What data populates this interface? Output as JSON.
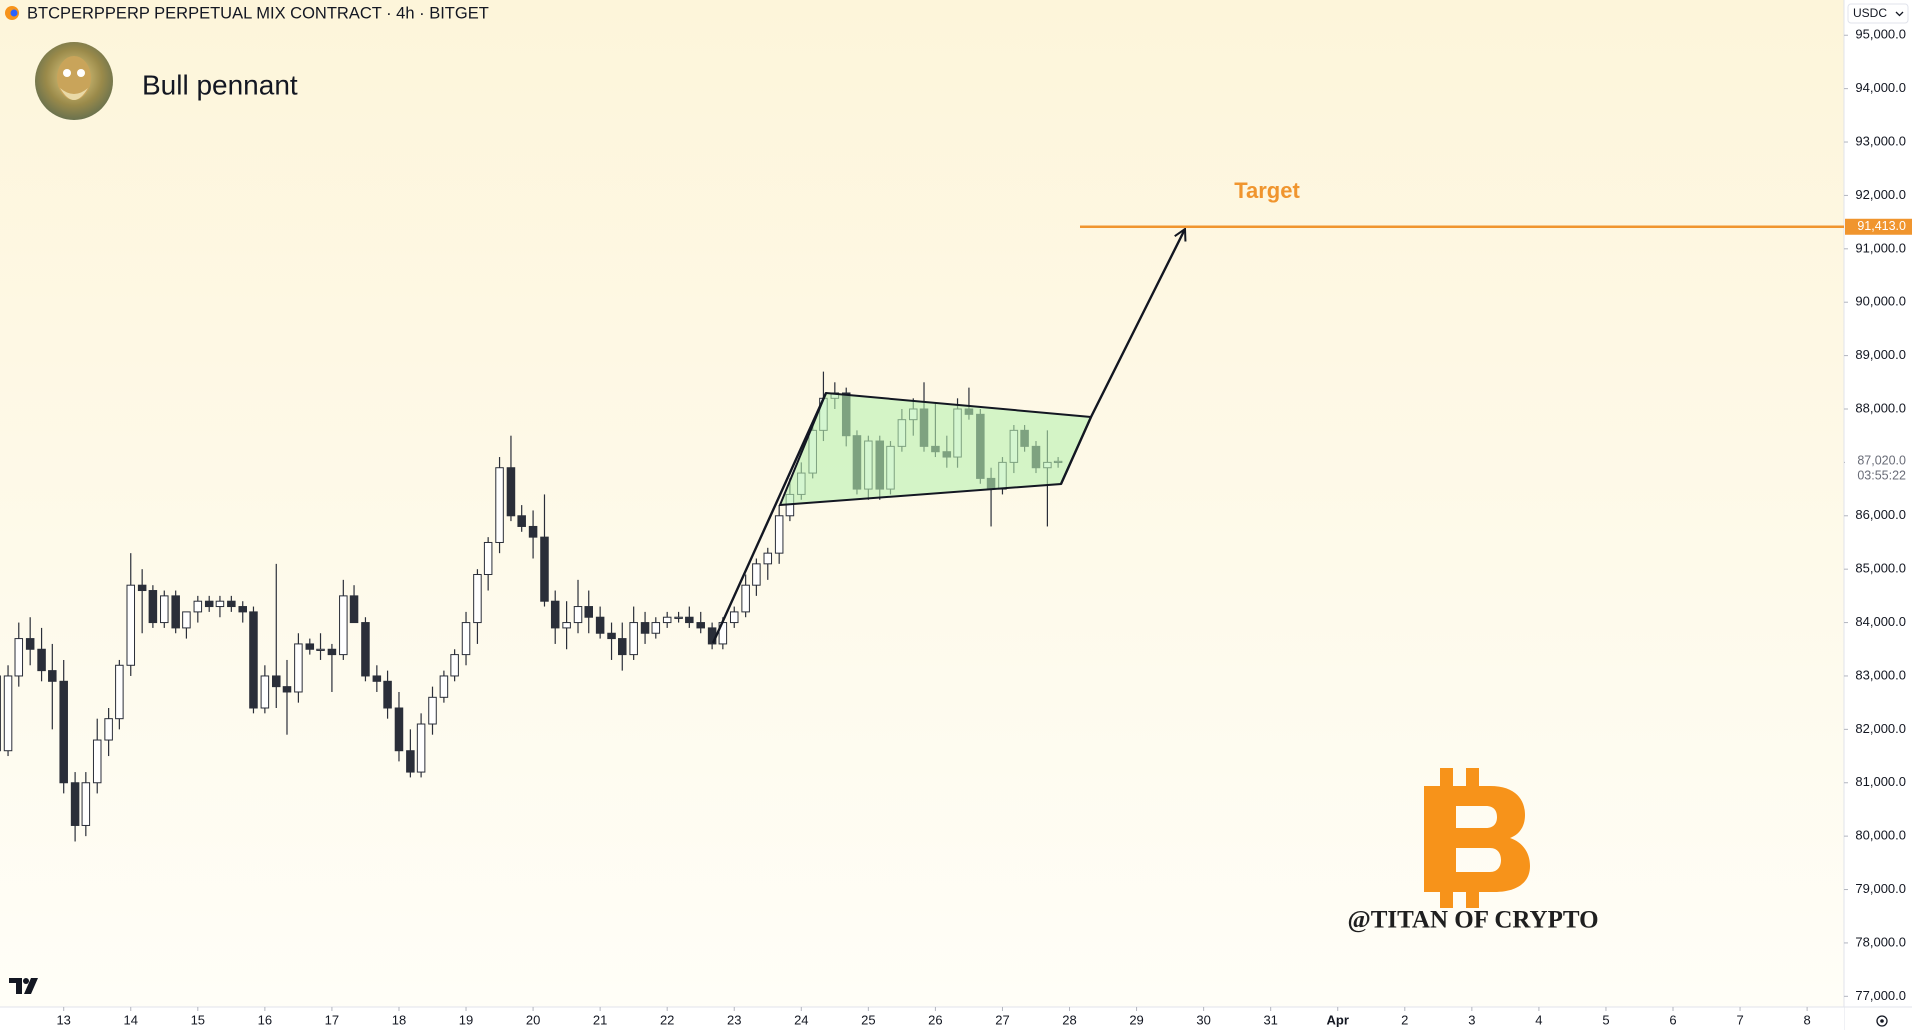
{
  "chart_data": {
    "type": "candlestick",
    "title": "BTCPERPPERP PERPETUAL MIX CONTRACT · 4h · BITGET",
    "subtitle": "Bull pennant",
    "currency": "USDC",
    "watermark": "@TITAN OF CRYPTO",
    "up_color": "#ffffff",
    "down_color": "#2a2e39",
    "x": [
      12,
      12.17,
      12.33,
      12.5,
      12.67,
      12.83,
      13,
      13.17,
      13.33,
      13.5,
      13.67,
      13.83,
      14,
      14.17,
      14.33,
      14.5,
      14.67,
      14.83,
      15,
      15.17,
      15.33,
      15.5,
      15.67,
      15.83,
      16,
      16.17,
      16.33,
      16.5,
      16.67,
      16.83,
      17,
      17.17,
      17.33,
      17.5,
      17.67,
      17.83,
      18,
      18.17,
      18.33,
      18.5,
      18.67,
      18.83,
      19,
      19.17,
      19.33,
      19.5,
      19.67,
      19.83,
      20,
      20.17,
      20.33,
      20.5,
      20.67,
      20.83,
      21,
      21.17,
      21.33,
      21.5,
      21.67,
      21.83,
      22,
      22.17,
      22.33,
      22.5,
      22.67,
      22.83,
      23,
      23.17,
      23.33,
      23.5,
      23.67,
      23.83,
      24,
      24.17,
      24.33,
      24.5,
      24.67,
      24.83,
      25,
      25.17,
      25.33,
      25.5,
      25.67,
      25.83,
      26,
      26.17,
      26.33,
      26.5,
      26.67,
      26.83,
      27,
      27.17,
      27.33,
      27.5,
      27.67,
      27.83
    ],
    "open": [
      83000,
      81600,
      83000,
      83700,
      83500,
      83100,
      82900,
      81000,
      80200,
      81000,
      81800,
      82200,
      83200,
      84700,
      84600,
      84000,
      84500,
      83900,
      84200,
      84400,
      84300,
      84400,
      84300,
      84200,
      82400,
      83000,
      82800,
      82700,
      83600,
      83500,
      83500,
      83400,
      84500,
      84000,
      83000,
      82900,
      82400,
      81600,
      81200,
      82100,
      82600,
      83000,
      83400,
      84000,
      84900,
      85500,
      86900,
      86000,
      85800,
      85600,
      84400,
      83900,
      84000,
      84300,
      84100,
      83800,
      83700,
      83400,
      84000,
      83800,
      84000,
      84100,
      84100,
      84000,
      83900,
      83600,
      84000,
      84200,
      84700,
      85100,
      85300,
      86000,
      86400,
      86800,
      87600,
      88200,
      88300,
      87500,
      86500,
      87400,
      86500,
      87300,
      87800,
      88000,
      87300,
      87200,
      87100,
      88000,
      87900,
      86700,
      86500,
      87000,
      87600,
      87300,
      86900,
      87000
    ],
    "high": [
      84400,
      83200,
      84000,
      84100,
      83900,
      83600,
      83300,
      81200,
      81200,
      82200,
      82400,
      83300,
      85300,
      85000,
      84700,
      84600,
      84600,
      84200,
      84500,
      84500,
      84500,
      84500,
      84400,
      84300,
      83200,
      85100,
      83300,
      83800,
      83700,
      83800,
      83600,
      84800,
      84700,
      84100,
      83200,
      83100,
      82700,
      82000,
      82300,
      82800,
      83100,
      83500,
      84200,
      85000,
      85600,
      87100,
      87500,
      86200,
      86100,
      86400,
      84600,
      84400,
      84800,
      84600,
      84300,
      84000,
      84000,
      84300,
      84200,
      84100,
      84200,
      84200,
      84300,
      84200,
      84000,
      84100,
      84300,
      84900,
      85200,
      85400,
      86200,
      86700,
      87000,
      87700,
      88700,
      88500,
      88400,
      87600,
      87500,
      87500,
      87400,
      88000,
      88200,
      88500,
      88100,
      87500,
      88200,
      88400,
      88000,
      86900,
      87100,
      87700,
      87700,
      87400,
      87600,
      87100
    ],
    "low": [
      80600,
      81500,
      82800,
      83200,
      82900,
      82000,
      80800,
      79900,
      80000,
      80800,
      81500,
      82000,
      83000,
      83800,
      83900,
      83900,
      83800,
      83700,
      84000,
      84200,
      84100,
      84200,
      84000,
      82300,
      82300,
      82400,
      81900,
      82500,
      83400,
      83300,
      82700,
      83300,
      84000,
      82900,
      82700,
      82200,
      81400,
      81100,
      81100,
      81900,
      82500,
      82900,
      83200,
      83600,
      84600,
      85300,
      85900,
      85700,
      85200,
      84300,
      83600,
      83500,
      83800,
      83800,
      83700,
      83300,
      83100,
      83300,
      83600,
      83700,
      83900,
      84000,
      83900,
      83800,
      83500,
      83500,
      83900,
      84100,
      84500,
      84800,
      85100,
      85900,
      86300,
      86700,
      87400,
      88000,
      87300,
      86400,
      86300,
      86300,
      86400,
      87200,
      87500,
      87200,
      87100,
      86900,
      86900,
      87800,
      86600,
      85800,
      86400,
      86800,
      87200,
      86800,
      85800,
      86900
    ],
    "close": [
      81600,
      83000,
      83700,
      83500,
      83100,
      82900,
      81000,
      80200,
      81000,
      81800,
      82200,
      83200,
      84700,
      84600,
      84000,
      84500,
      83900,
      84200,
      84400,
      84300,
      84400,
      84300,
      84200,
      82400,
      83000,
      82800,
      82700,
      83600,
      83500,
      83500,
      83400,
      84500,
      84000,
      83000,
      82900,
      82400,
      81600,
      81200,
      82100,
      82600,
      83000,
      83400,
      84000,
      84900,
      85500,
      86900,
      86000,
      85800,
      85600,
      84400,
      83900,
      84000,
      84300,
      84100,
      83800,
      83700,
      83400,
      84000,
      83800,
      84000,
      84100,
      84100,
      84000,
      83900,
      83600,
      84000,
      84200,
      84700,
      85100,
      85300,
      86000,
      86400,
      86800,
      87600,
      88200,
      88300,
      87500,
      86500,
      87400,
      86500,
      87300,
      87800,
      88000,
      87300,
      87200,
      87100,
      88000,
      87900,
      86700,
      86500,
      87000,
      87600,
      87300,
      86900,
      87000,
      87020
    ],
    "xlim": [
      12.05,
      39.55
    ],
    "xticks": [
      13,
      14,
      15,
      16,
      17,
      18,
      19,
      20,
      21,
      22,
      23,
      24,
      25,
      26,
      27,
      28,
      29,
      30,
      31,
      {
        "value": 32,
        "label": "Apr"
      },
      {
        "value": 33,
        "label": "2"
      },
      {
        "value": 34,
        "label": "3"
      },
      {
        "value": 35,
        "label": "4"
      },
      {
        "value": 36,
        "label": "5"
      },
      {
        "value": 37,
        "label": "6"
      },
      {
        "value": 38,
        "label": "7"
      },
      {
        "value": 39,
        "label": "8"
      }
    ],
    "ylim": [
      76800,
      95660
    ],
    "yticks": [
      {
        "value": 77000,
        "label": "77,000.0"
      },
      {
        "value": 78000,
        "label": "78,000.0"
      },
      {
        "value": 79000,
        "label": "79,000.0"
      },
      {
        "value": 80000,
        "label": "80,000.0"
      },
      {
        "value": 81000,
        "label": "81,000.0"
      },
      {
        "value": 82000,
        "label": "82,000.0"
      },
      {
        "value": 83000,
        "label": "83,000.0"
      },
      {
        "value": 84000,
        "label": "84,000.0"
      },
      {
        "value": 85000,
        "label": "85,000.0"
      },
      {
        "value": 86000,
        "label": "86,000.0"
      },
      {
        "value": 87000,
        "label": "87,000.0"
      },
      {
        "value": 88000,
        "label": "88,000.0"
      },
      {
        "value": 89000,
        "label": "89,000.0"
      },
      {
        "value": 90000,
        "label": "90,000.0"
      },
      {
        "value": 91000,
        "label": "91,000.0"
      },
      {
        "value": 92000,
        "label": "92,000.0"
      },
      {
        "value": 93000,
        "label": "93,000.0"
      },
      {
        "value": 94000,
        "label": "94,000.0"
      },
      {
        "value": 95000,
        "label": "95,000.0"
      }
    ],
    "target": {
      "label": "Target",
      "value": 91413,
      "value_label": "91,413.0",
      "color": "#f0952e"
    },
    "last_price": {
      "value": 87020,
      "value_label": "87,020.0",
      "countdown": "03:55:22"
    }
  }
}
